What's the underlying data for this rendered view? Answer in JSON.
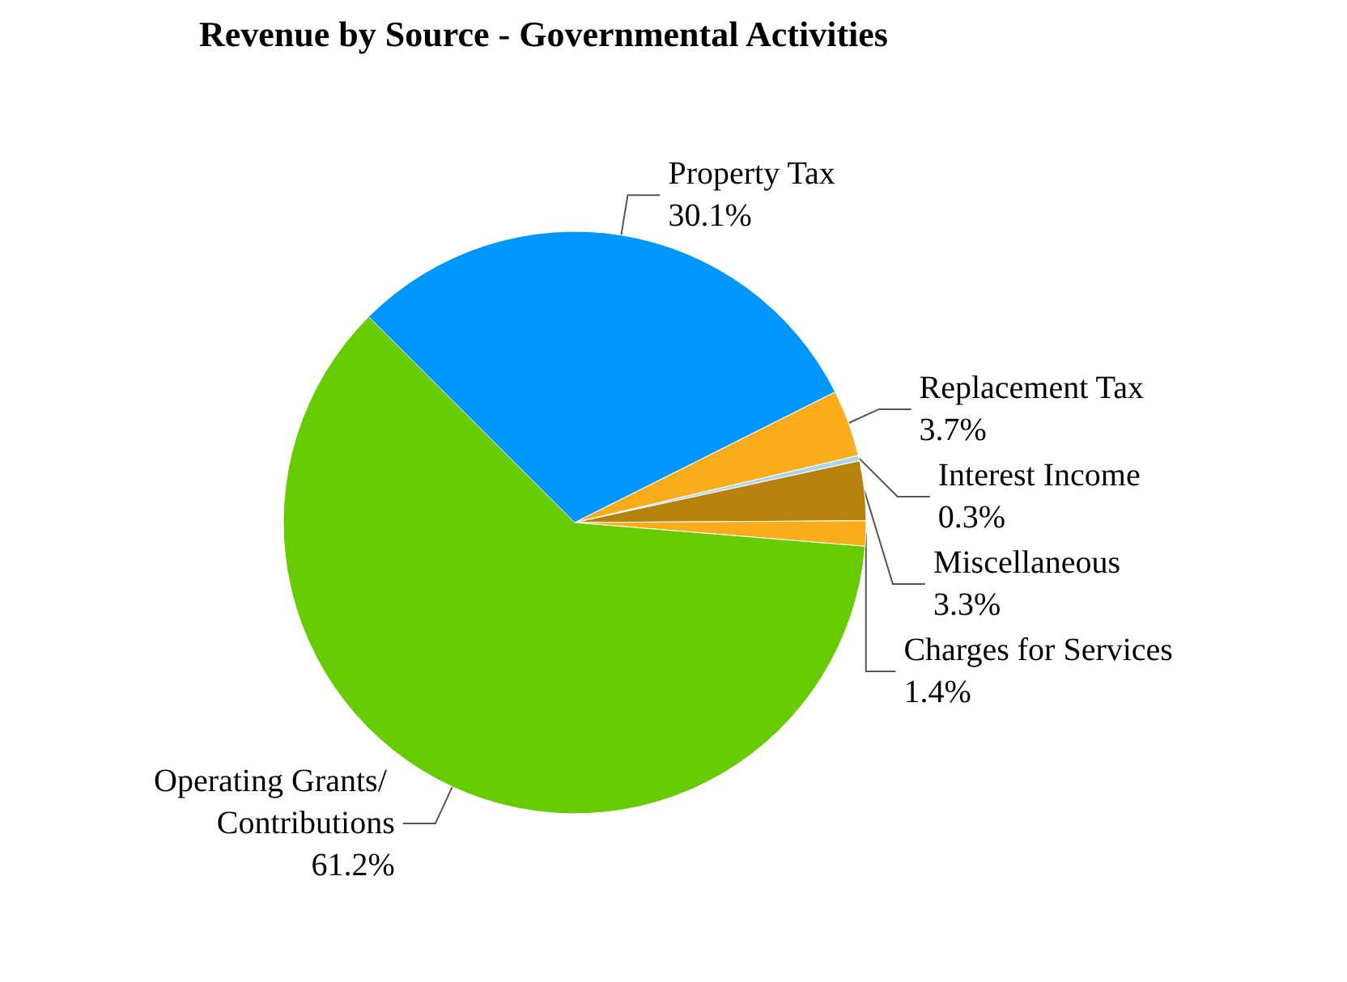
{
  "chart_data": {
    "type": "pie",
    "title": "Revenue by Source - Governmental Activities",
    "categories": [
      "Property Tax",
      "Replacement Tax",
      "Interest Income",
      "Miscellaneous",
      "Charges for Services",
      "Operating Grants/ Contributions"
    ],
    "values": [
      30.1,
      3.7,
      0.3,
      3.3,
      1.4,
      61.2
    ],
    "colors": [
      "#0096ff",
      "#f9ad1a",
      "#a9d6ee",
      "#b8820f",
      "#f9ad1a",
      "#66cc00"
    ],
    "value_labels": [
      "30.1%",
      "3.7%",
      "0.3%",
      "3.3%",
      "1.4%",
      "61.2%"
    ],
    "legend": false
  }
}
